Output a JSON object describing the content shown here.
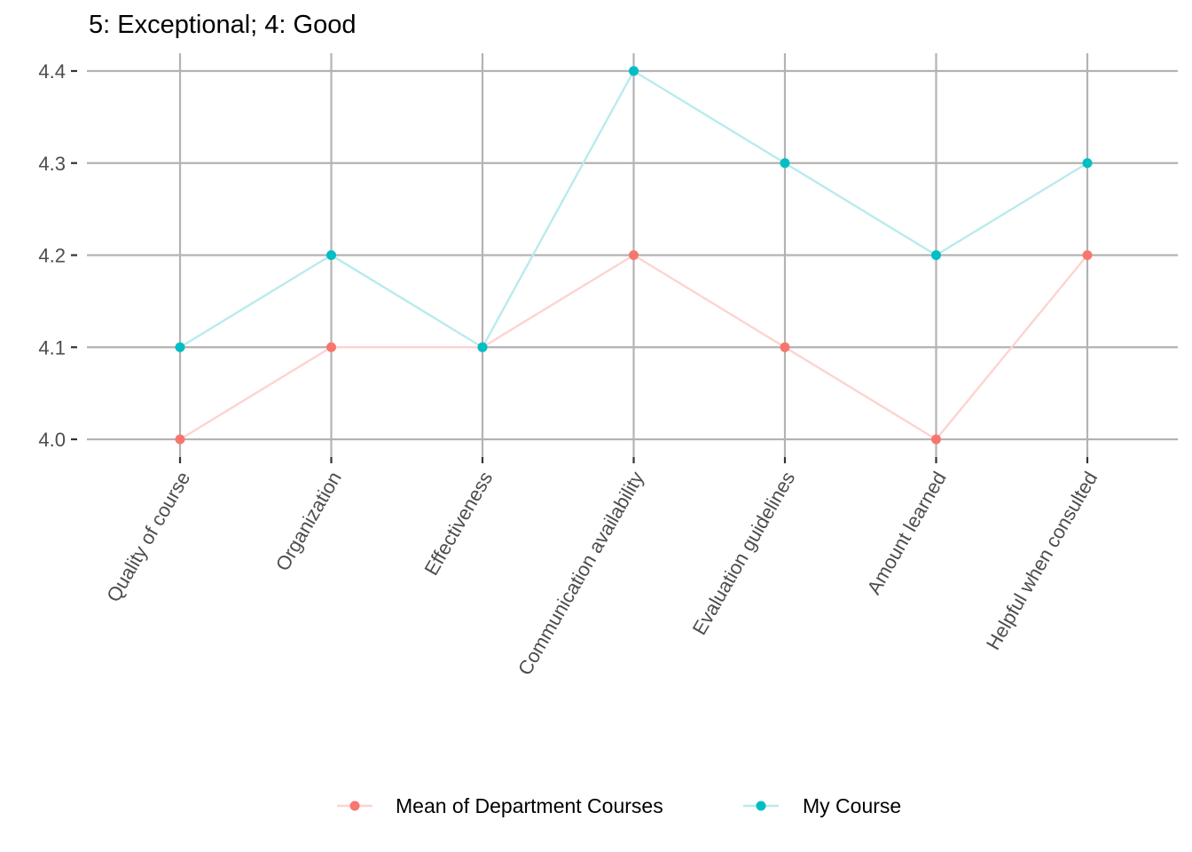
{
  "chart_data": {
    "type": "line",
    "title": "5: Exceptional; 4: Good",
    "xlabel": "",
    "ylabel": "",
    "categories": [
      "Quality of course",
      "Organization",
      "Effectiveness",
      "Communication availability",
      "Evaluation guidelines",
      "Amount learned",
      "Helpful when consulted"
    ],
    "series": [
      {
        "name": "Mean of Department Courses",
        "values": [
          4.0,
          4.1,
          4.1,
          4.2,
          4.1,
          4.0,
          4.2
        ],
        "color": "#F8766D",
        "line_color": "#FCD4D1"
      },
      {
        "name": "My Course",
        "values": [
          4.1,
          4.2,
          4.1,
          4.4,
          4.3,
          4.2,
          4.3
        ],
        "color": "#00BFC4",
        "line_color": "#B9EBEC"
      }
    ],
    "y_ticks": [
      "4.0",
      "4.1",
      "4.2",
      "4.3",
      "4.4"
    ],
    "ylim": [
      4.0,
      4.4
    ],
    "grid": true,
    "legend_position": "bottom"
  }
}
